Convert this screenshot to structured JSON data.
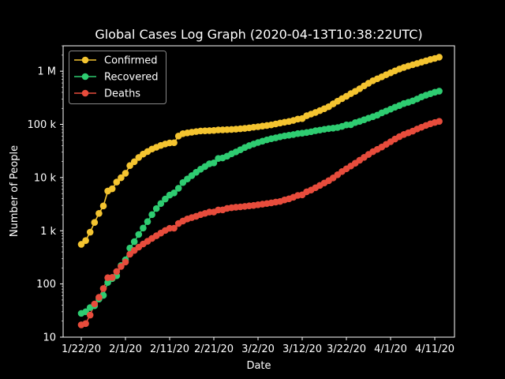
{
  "chart_data": {
    "type": "line",
    "title": "Global Cases Log Graph (2020-04-13T10:38:22UTC)",
    "xlabel": "Date",
    "ylabel": "Number of People",
    "y_scale": "log",
    "ylim": [
      10,
      3000000
    ],
    "x_ticks": [
      "1/22/20",
      "2/1/20",
      "2/11/20",
      "2/21/20",
      "3/2/20",
      "3/12/20",
      "3/22/20",
      "4/1/20",
      "4/11/20"
    ],
    "y_ticks": [
      {
        "value": 10,
        "label": "10"
      },
      {
        "value": 100,
        "label": "100"
      },
      {
        "value": 1000,
        "label": "1 k"
      },
      {
        "value": 10000,
        "label": "10 k"
      },
      {
        "value": 100000,
        "label": "100 k"
      },
      {
        "value": 1000000,
        "label": "1 M"
      }
    ],
    "legend_position": "top-left",
    "x": [
      "1/22/20",
      "1/23/20",
      "1/24/20",
      "1/25/20",
      "1/26/20",
      "1/27/20",
      "1/28/20",
      "1/29/20",
      "1/30/20",
      "1/31/20",
      "2/1/20",
      "2/2/20",
      "2/3/20",
      "2/4/20",
      "2/5/20",
      "2/6/20",
      "2/7/20",
      "2/8/20",
      "2/9/20",
      "2/10/20",
      "2/11/20",
      "2/12/20",
      "2/13/20",
      "2/14/20",
      "2/15/20",
      "2/16/20",
      "2/17/20",
      "2/18/20",
      "2/19/20",
      "2/20/20",
      "2/21/20",
      "2/22/20",
      "2/23/20",
      "2/24/20",
      "2/25/20",
      "2/26/20",
      "2/27/20",
      "2/28/20",
      "2/29/20",
      "3/1/20",
      "3/2/20",
      "3/3/20",
      "3/4/20",
      "3/5/20",
      "3/6/20",
      "3/7/20",
      "3/8/20",
      "3/9/20",
      "3/10/20",
      "3/11/20",
      "3/12/20",
      "3/13/20",
      "3/14/20",
      "3/15/20",
      "3/16/20",
      "3/17/20",
      "3/18/20",
      "3/19/20",
      "3/20/20",
      "3/21/20",
      "3/22/20",
      "3/23/20",
      "3/24/20",
      "3/25/20",
      "3/26/20",
      "3/27/20",
      "3/28/20",
      "3/29/20",
      "3/30/20",
      "3/31/20",
      "4/1/20",
      "4/2/20",
      "4/3/20",
      "4/4/20",
      "4/5/20",
      "4/6/20",
      "4/7/20",
      "4/8/20",
      "4/9/20",
      "4/10/20",
      "4/11/20",
      "4/12/20"
    ],
    "series": [
      {
        "name": "Confirmed",
        "color": "#f4c430",
        "values": [
          555,
          654,
          941,
          1434,
          2118,
          2927,
          5578,
          6166,
          8234,
          9927,
          12038,
          16787,
          19881,
          23892,
          27635,
          30817,
          34391,
          37120,
          40150,
          42762,
          44802,
          45221,
          60368,
          66885,
          69030,
          71224,
          73258,
          75136,
          75639,
          76197,
          76819,
          78572,
          78958,
          79561,
          80406,
          81388,
          82746,
          84112,
          86011,
          88369,
          90306,
          92840,
          95120,
          97886,
          101801,
          105847,
          109821,
          113590,
          118620,
          125875,
          128352,
          145205,
          156101,
          167454,
          181574,
          197102,
          214821,
          242570,
          272208,
          304507,
          336953,
          378235,
          418045,
          467653,
          529591,
          593291,
          660706,
          720117,
          782365,
          857487,
          932605,
          1013466,
          1095917,
          1176060,
          1249754,
          1321481,
          1396476,
          1480202,
          1565278,
          1657526,
          1735650,
          1834721
        ]
      },
      {
        "name": "Recovered",
        "color": "#2ecc71",
        "values": [
          28,
          30,
          36,
          39,
          52,
          61,
          107,
          126,
          143,
          222,
          284,
          472,
          623,
          852,
          1124,
          1487,
          2011,
          2616,
          3244,
          3946,
          4683,
          5150,
          6295,
          8058,
          9395,
          10865,
          12583,
          14352,
          16121,
          18177,
          18890,
          22886,
          23394,
          25227,
          27905,
          30384,
          33277,
          36711,
          39782,
          42716,
          45602,
          48228,
          51170,
          53796,
          55865,
          58358,
          60694,
          62494,
          64404,
          67003,
          68324,
          70251,
          72624,
          76034,
          78088,
          80840,
          83207,
          84854,
          87256,
          91499,
          97704,
          98334,
          108000,
          114074,
          122150,
          130915,
          139415,
          149082,
          164566,
          178034,
          193177,
          210263,
          225796,
          246152,
          260012,
          276515,
          300054,
          328661,
          353975,
          376096,
          402110,
          421722
        ]
      },
      {
        "name": "Deaths",
        "color": "#e74c3c",
        "values": [
          17,
          18,
          26,
          42,
          56,
          82,
          131,
          133,
          171,
          213,
          259,
          362,
          426,
          492,
          564,
          634,
          719,
          806,
          906,
          1013,
          1113,
          1118,
          1371,
          1523,
          1666,
          1770,
          1868,
          2007,
          2122,
          2247,
          2251,
          2458,
          2469,
          2629,
          2708,
          2770,
          2814,
          2872,
          2941,
          2996,
          3085,
          3160,
          3254,
          3348,
          3460,
          3558,
          3802,
          3988,
          4262,
          4615,
          4720,
          5404,
          5819,
          6440,
          7126,
          7905,
          8733,
          9867,
          11299,
          12973,
          14623,
          16497,
          18615,
          21181,
          23970,
          27198,
          30652,
          33925,
          37582,
          42107,
          47180,
          52983,
          58787,
          64606,
          69374,
          74565,
          81865,
          88338,
          95455,
          102525,
          108503,
          114090
        ]
      }
    ]
  }
}
